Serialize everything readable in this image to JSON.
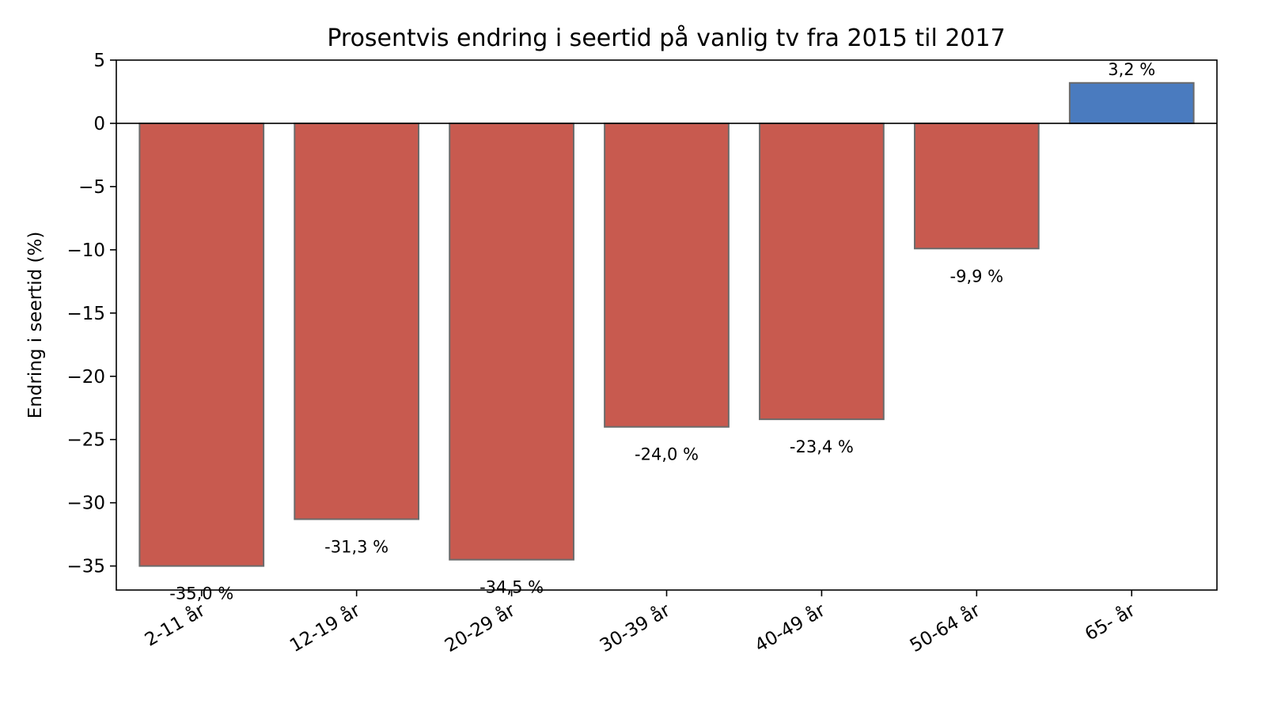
{
  "chart_data": {
    "type": "bar",
    "title": "Prosentvis endring i seertid på vanlig tv fra 2015 til 2017",
    "xlabel": "",
    "ylabel": "Endring i seertid (%)",
    "ylim": [
      -36.9,
      5
    ],
    "yticks": [
      5,
      0,
      -5,
      -10,
      -15,
      -20,
      -25,
      -30,
      -35
    ],
    "ytick_labels": [
      "5",
      "0",
      "−5",
      "−10",
      "−15",
      "−20",
      "−25",
      "−30",
      "−35"
    ],
    "categories": [
      "2-11 år",
      "12-19 år",
      "20-29 år",
      "30-39 år",
      "40-49 år",
      "50-64 år",
      "65- år"
    ],
    "values": [
      -35.0,
      -31.3,
      -34.5,
      -24.0,
      -23.4,
      -9.9,
      3.2
    ],
    "value_labels": [
      "-35,0 %",
      "-31,3 %",
      "-34,5 %",
      "-24,0 %",
      "-23,4 %",
      "-9,9 %",
      "3,2 %"
    ],
    "grid": false,
    "colors": {
      "negative": "#c85a4f",
      "positive": "#4a7bbf",
      "bar_edge": "#6b6b6b",
      "axis": "#000000"
    }
  }
}
